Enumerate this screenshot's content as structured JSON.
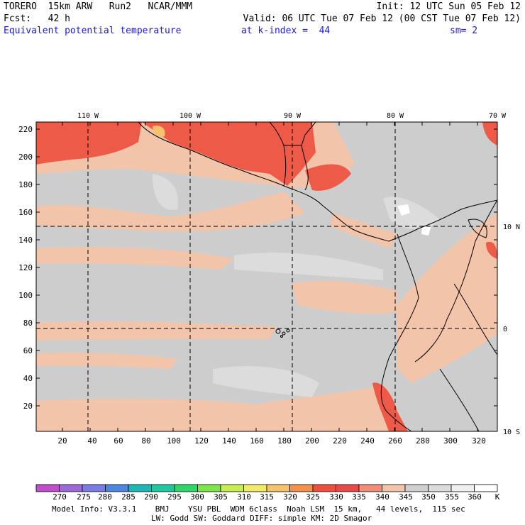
{
  "header": {
    "model": "TORERO  15km ARW   Run2   NCAR/MMM",
    "init": "Init: 12 UTC Sun 05 Feb 12",
    "fcst": "Fcst:   42 h",
    "valid": "Valid: 06 UTC Tue 07 Feb 12 (00 CST Tue 07 Feb 12)",
    "field": "Equivalent potential temperature",
    "level": "at k-index =  44",
    "smoothing": "sm= 2"
  },
  "map": {
    "lon_labels": [
      "110 W",
      "100 W",
      "90 W",
      "80 W",
      "70 W"
    ],
    "lat_labels": [
      "10 N",
      "0",
      "10 S"
    ],
    "y_ticks": [
      "220",
      "200",
      "180",
      "160",
      "140",
      "120",
      "100",
      "80",
      "60",
      "40",
      "20"
    ],
    "x_ticks": [
      "20",
      "40",
      "60",
      "80",
      "100",
      "120",
      "140",
      "160",
      "180",
      "200",
      "220",
      "240",
      "260",
      "280",
      "300",
      "320"
    ]
  },
  "colorbar": {
    "labels": [
      "270",
      "275",
      "280",
      "285",
      "290",
      "295",
      "300",
      "305",
      "310",
      "315",
      "320",
      "325",
      "330",
      "335",
      "340",
      "345",
      "350",
      "355",
      "360"
    ],
    "unit": "K",
    "colors": [
      "#c04ec8",
      "#9b6ad6",
      "#7b7be6",
      "#4d86e0",
      "#1fb6b6",
      "#20c8a0",
      "#2fd66a",
      "#7ee64a",
      "#c6ee52",
      "#f2ea6a",
      "#f5c46a",
      "#f2914e",
      "#ee5040",
      "#e84a4a",
      "#f28e76",
      "#f2c4aa",
      "#cfcfcf",
      "#dcdcdc",
      "#f0f0f0",
      "#ffffff"
    ]
  },
  "footer": {
    "line1": "Model Info: V3.3.1    BMJ    YSU PBL  WDM 6class  Noah LSM  15 km,   44 levels,  115 sec",
    "line2": "LW: Godd SW: Goddard DIFF: simple KM: 2D Smagor"
  }
}
